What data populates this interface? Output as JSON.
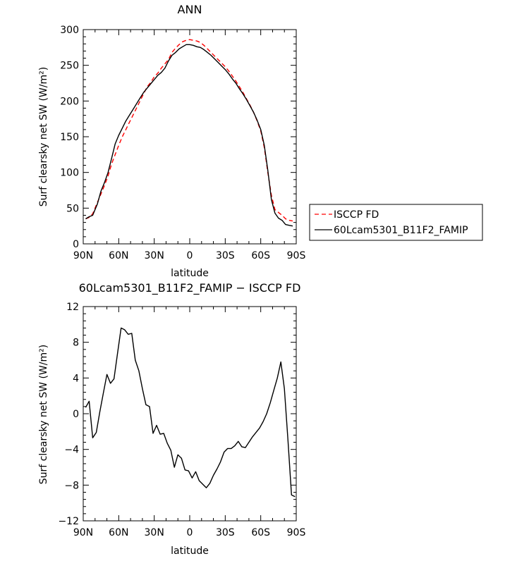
{
  "chart_data": [
    {
      "type": "line",
      "title": "ANN",
      "xlabel": "latitude",
      "ylabel": "Surf clearsky net SW (W/m²)",
      "xlim": [
        90,
        -90
      ],
      "ylim": [
        0,
        300
      ],
      "xticks": [
        90,
        60,
        30,
        0,
        -30,
        -60,
        -90
      ],
      "xtick_labels": [
        "90N",
        "60N",
        "30N",
        "0",
        "30S",
        "60S",
        "90S"
      ],
      "yticks": [
        0,
        50,
        100,
        150,
        200,
        250,
        300
      ],
      "ytick_labels": [
        "0",
        "50",
        "100",
        "150",
        "200",
        "250",
        "300"
      ],
      "legend_position": "right",
      "series": [
        {
          "name": "ISCCP FD",
          "color": "#ff0000",
          "dash": "dashed",
          "x": [
            88,
            85,
            82,
            78,
            75,
            72,
            69,
            66,
            63,
            60,
            57,
            54,
            51,
            48,
            45,
            42,
            39,
            36,
            33,
            30,
            27,
            24,
            21,
            18,
            15,
            12,
            9,
            6,
            3,
            0,
            -3,
            -6,
            -9,
            -12,
            -15,
            -18,
            -21,
            -24,
            -27,
            -30,
            -33,
            -36,
            -39,
            -42,
            -45,
            -48,
            -51,
            -54,
            -57,
            -60,
            -63,
            -66,
            -69,
            -72,
            -75,
            -78,
            -81,
            -84,
            -87
          ],
          "y": [
            35,
            37,
            42,
            58,
            70,
            82,
            95,
            112,
            125,
            138,
            150,
            160,
            170,
            180,
            190,
            200,
            210,
            220,
            226,
            234,
            239,
            246,
            252,
            258,
            268,
            274,
            279,
            283,
            285,
            286,
            285,
            284,
            282,
            278,
            273,
            268,
            263,
            258,
            253,
            248,
            242,
            235,
            228,
            220,
            212,
            203,
            194,
            184,
            172,
            158,
            135,
            100,
            68,
            48,
            44,
            40,
            35,
            33,
            32
          ]
        },
        {
          "name": "60Lcam5301_B11F2_FAMIP",
          "color": "#000000",
          "dash": "solid",
          "x": [
            88,
            85,
            82,
            78,
            75,
            72,
            69,
            66,
            63,
            60,
            57,
            54,
            51,
            48,
            45,
            42,
            39,
            36,
            33,
            30,
            27,
            24,
            21,
            18,
            15,
            12,
            9,
            6,
            3,
            0,
            -3,
            -6,
            -9,
            -12,
            -15,
            -18,
            -21,
            -24,
            -27,
            -30,
            -33,
            -36,
            -39,
            -42,
            -45,
            -48,
            -51,
            -54,
            -57,
            -60,
            -63,
            -66,
            -69,
            -72,
            -75,
            -78,
            -81,
            -84,
            -87
          ],
          "y": [
            35,
            38,
            40,
            56,
            74,
            86,
            100,
            120,
            140,
            152,
            162,
            172,
            180,
            188,
            196,
            204,
            212,
            218,
            224,
            230,
            236,
            240,
            246,
            256,
            264,
            268,
            273,
            276,
            279,
            279,
            278,
            276,
            275,
            272,
            268,
            264,
            259,
            254,
            249,
            244,
            238,
            231,
            225,
            217,
            210,
            202,
            193,
            184,
            173,
            160,
            138,
            103,
            62,
            43,
            36,
            33,
            27,
            26,
            25
          ]
        }
      ]
    },
    {
      "type": "line",
      "title": "60Lcam5301_B11F2_FAMIP − ISCCP FD",
      "xlabel": "latitude",
      "ylabel": "Surf clearsky net SW (W/m²)",
      "xlim": [
        90,
        -90
      ],
      "ylim": [
        -12,
        12
      ],
      "xticks": [
        90,
        60,
        30,
        0,
        -30,
        -60,
        -90
      ],
      "xtick_labels": [
        "90N",
        "60N",
        "30N",
        "0",
        "30S",
        "60S",
        "90S"
      ],
      "yticks": [
        -12,
        -8,
        -4,
        0,
        4,
        8,
        12
      ],
      "ytick_labels": [
        "−12",
        "−8",
        "−4",
        "0",
        "4",
        "8",
        "12"
      ],
      "series": [
        {
          "color": "#000000",
          "dash": "solid",
          "x": [
            88,
            85,
            82,
            79,
            76,
            73,
            70,
            67,
            64,
            61,
            58,
            55,
            52,
            49,
            46,
            43,
            40,
            37,
            34,
            31,
            28,
            25,
            22,
            19,
            16,
            13,
            10,
            7,
            4,
            1,
            -2,
            -5,
            -8,
            -11,
            -14,
            -17,
            -20,
            -23,
            -26,
            -29,
            -32,
            -35,
            -38,
            -41,
            -44,
            -47,
            -50,
            -53,
            -56,
            -59,
            -62,
            -65,
            -68,
            -71,
            -74,
            -77,
            -80,
            -83,
            -86,
            -89
          ],
          "y": [
            0.7,
            1.4,
            -2.7,
            -2.1,
            0.2,
            2.3,
            4.4,
            3.4,
            3.9,
            6.8,
            9.6,
            9.4,
            8.9,
            9.0,
            6.0,
            4.8,
            2.8,
            1.0,
            0.8,
            -2.2,
            -1.3,
            -2.3,
            -2.2,
            -3.3,
            -4.1,
            -6.0,
            -4.6,
            -5.0,
            -6.3,
            -6.4,
            -7.2,
            -6.5,
            -7.5,
            -7.9,
            -8.3,
            -7.8,
            -6.9,
            -6.2,
            -5.4,
            -4.3,
            -3.9,
            -3.9,
            -3.6,
            -3.1,
            -3.7,
            -3.8,
            -3.2,
            -2.6,
            -2.1,
            -1.6,
            -0.9,
            0.0,
            1.2,
            2.6,
            4.0,
            5.8,
            2.8,
            -3.0,
            -9.1,
            -9.3
          ]
        }
      ]
    }
  ]
}
